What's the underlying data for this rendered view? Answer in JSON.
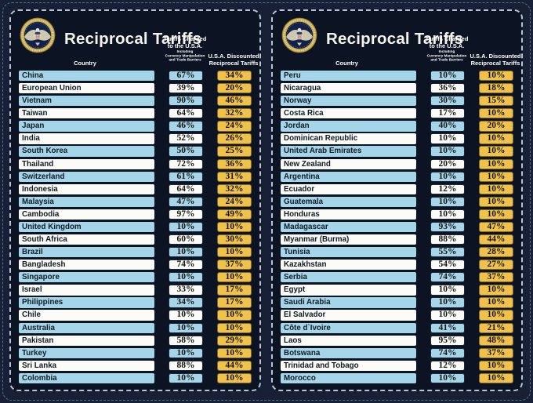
{
  "colors": {
    "page_bg": "#182036",
    "panel_bg": "#0c1322",
    "panel_border": "#b7c4d6",
    "outer_frame": "#54748c",
    "row_blue": "#a4d5e8",
    "row_white": "#fbfbf7",
    "gold_box": "#f0c24c",
    "text_dark": "#101b26",
    "header_text": "#ffffff",
    "title_text": "#f4f2ea",
    "seal_gold": "#c8a84b",
    "seal_navy": "#10224c"
  },
  "header": {
    "title": "Reciprocal Tariffs",
    "seal_icon": "presidential-seal-icon",
    "country_label": "Country",
    "charged_label_lines": [
      "Tariffs Charged",
      "to the U.S.A."
    ],
    "charged_sub_lines": [
      "Including",
      "Currency Manipulation",
      "and Trade Barriers"
    ],
    "discounted_label_lines": [
      "U.S.A. Discounted",
      "Reciprocal Tariffs"
    ]
  },
  "chart_data": {
    "type": "table",
    "title": "Reciprocal Tariffs",
    "columns": [
      "Country",
      "Tariffs Charged to the U.S.A. Including Currency Manipulation and Trade Barriers",
      "U.S.A. Discounted Reciprocal Tariffs"
    ],
    "panels": [
      {
        "rows": [
          [
            "China",
            "67%",
            "34%"
          ],
          [
            "European Union",
            "39%",
            "20%"
          ],
          [
            "Vietnam",
            "90%",
            "46%"
          ],
          [
            "Taiwan",
            "64%",
            "32%"
          ],
          [
            "Japan",
            "46%",
            "24%"
          ],
          [
            "India",
            "52%",
            "26%"
          ],
          [
            "South Korea",
            "50%",
            "25%"
          ],
          [
            "Thailand",
            "72%",
            "36%"
          ],
          [
            "Switzerland",
            "61%",
            "31%"
          ],
          [
            "Indonesia",
            "64%",
            "32%"
          ],
          [
            "Malaysia",
            "47%",
            "24%"
          ],
          [
            "Cambodia",
            "97%",
            "49%"
          ],
          [
            "United Kingdom",
            "10%",
            "10%"
          ],
          [
            "South Africa",
            "60%",
            "30%"
          ],
          [
            "Brazil",
            "10%",
            "10%"
          ],
          [
            "Bangladesh",
            "74%",
            "37%"
          ],
          [
            "Singapore",
            "10%",
            "10%"
          ],
          [
            "Israel",
            "33%",
            "17%"
          ],
          [
            "Philippines",
            "34%",
            "17%"
          ],
          [
            "Chile",
            "10%",
            "10%"
          ],
          [
            "Australia",
            "10%",
            "10%"
          ],
          [
            "Pakistan",
            "58%",
            "29%"
          ],
          [
            "Turkey",
            "10%",
            "10%"
          ],
          [
            "Sri Lanka",
            "88%",
            "44%"
          ],
          [
            "Colombia",
            "10%",
            "10%"
          ]
        ]
      },
      {
        "rows": [
          [
            "Peru",
            "10%",
            "10%"
          ],
          [
            "Nicaragua",
            "36%",
            "18%"
          ],
          [
            "Norway",
            "30%",
            "15%"
          ],
          [
            "Costa Rica",
            "17%",
            "10%"
          ],
          [
            "Jordan",
            "40%",
            "20%"
          ],
          [
            "Dominican Republic",
            "10%",
            "10%"
          ],
          [
            "United Arab Emirates",
            "10%",
            "10%"
          ],
          [
            "New Zealand",
            "20%",
            "10%"
          ],
          [
            "Argentina",
            "10%",
            "10%"
          ],
          [
            "Ecuador",
            "12%",
            "10%"
          ],
          [
            "Guatemala",
            "10%",
            "10%"
          ],
          [
            "Honduras",
            "10%",
            "10%"
          ],
          [
            "Madagascar",
            "93%",
            "47%"
          ],
          [
            "Myanmar (Burma)",
            "88%",
            "44%"
          ],
          [
            "Tunisia",
            "55%",
            "28%"
          ],
          [
            "Kazakhstan",
            "54%",
            "27%"
          ],
          [
            "Serbia",
            "74%",
            "37%"
          ],
          [
            "Egypt",
            "10%",
            "10%"
          ],
          [
            "Saudi Arabia",
            "10%",
            "10%"
          ],
          [
            "El Salvador",
            "10%",
            "10%"
          ],
          [
            "Côte d`Ivoire",
            "41%",
            "21%"
          ],
          [
            "Laos",
            "95%",
            "48%"
          ],
          [
            "Botswana",
            "74%",
            "37%"
          ],
          [
            "Trinidad and Tobago",
            "12%",
            "10%"
          ],
          [
            "Morocco",
            "10%",
            "10%"
          ]
        ]
      }
    ]
  }
}
